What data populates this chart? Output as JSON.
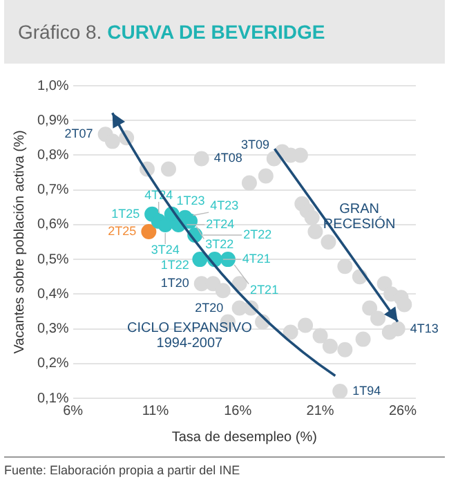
{
  "chart_data": {
    "type": "scatter",
    "title": "Gráfico 8.",
    "subtitle": "CURVA DE BEVERIDGE",
    "xlabel": "Tasa de desempleo (%)",
    "ylabel": "Vacantes sobre población activa (%)",
    "xlim": [
      6,
      26.8
    ],
    "ylim": [
      0.1,
      1.0
    ],
    "xticks": [
      {
        "value": 6,
        "label": "6%"
      },
      {
        "value": 11,
        "label": "11%"
      },
      {
        "value": 16,
        "label": "16%"
      },
      {
        "value": 21,
        "label": "21%"
      },
      {
        "value": 26,
        "label": "26%"
      }
    ],
    "yticks": [
      {
        "value": 0.1,
        "label": "0,1%"
      },
      {
        "value": 0.2,
        "label": "0,2%"
      },
      {
        "value": 0.3,
        "label": "0,3%"
      },
      {
        "value": 0.4,
        "label": "0,4%"
      },
      {
        "value": 0.5,
        "label": "0,5%"
      },
      {
        "value": 0.6,
        "label": "0,6%"
      },
      {
        "value": 0.7,
        "label": "0,7%"
      },
      {
        "value": 0.8,
        "label": "0,8%"
      },
      {
        "value": 0.9,
        "label": "0,9%"
      },
      {
        "value": 1.0,
        "label": "1,0%"
      }
    ],
    "grid": "y",
    "marker": "circle",
    "series": [
      {
        "color": "#d9d9d9",
        "x": [
          7.97,
          8.4,
          9.25,
          10.5,
          11.8,
          13.8,
          18.2,
          18.7,
          19.2,
          19.8,
          16.7,
          17.7,
          19.9,
          20.2,
          20.5,
          20.7,
          21.5,
          22.5,
          23.4,
          24.9,
          25.3,
          25.9,
          26.1,
          25.7,
          25.2,
          24.5,
          24.0,
          23.6,
          22.5,
          21.6,
          21.0,
          20.1,
          19.2,
          17.5,
          16.8,
          16.1,
          22.2,
          13.8,
          14.5,
          15.1,
          16.1,
          15.4
        ],
        "values": [
          0.86,
          0.84,
          0.85,
          0.76,
          0.76,
          0.79,
          0.79,
          0.81,
          0.8,
          0.8,
          0.72,
          0.74,
          0.66,
          0.64,
          0.62,
          0.58,
          0.55,
          0.48,
          0.45,
          0.43,
          0.4,
          0.39,
          0.37,
          0.3,
          0.29,
          0.33,
          0.36,
          0.27,
          0.24,
          0.25,
          0.28,
          0.31,
          0.29,
          0.32,
          0.36,
          0.36,
          0.12,
          0.43,
          0.43,
          0.41,
          0.43,
          0.32
        ],
        "value_labels": [
          "2T07",
          null,
          null,
          null,
          null,
          "4T08",
          "3T09",
          null,
          null,
          null,
          null,
          null,
          null,
          null,
          null,
          null,
          null,
          null,
          null,
          null,
          null,
          null,
          null,
          "4T13",
          null,
          null,
          null,
          null,
          null,
          null,
          null,
          null,
          null,
          null,
          null,
          null,
          "1T94",
          "1T20",
          null,
          null,
          null,
          "2T20"
        ]
      },
      {
        "color": "#33c6c6",
        "x": [
          10.8,
          11.2,
          11.6,
          12.0,
          12.4,
          12.8,
          13.1,
          13.4,
          13.7,
          14.6,
          15.4
        ],
        "values": [
          0.63,
          0.61,
          0.6,
          0.63,
          0.6,
          0.62,
          0.61,
          0.57,
          0.5,
          0.5,
          0.5
        ],
        "value_labels": [
          "1T25",
          "4T24",
          "3T24",
          "1T23",
          "2T24",
          "4T23",
          "3T22",
          "2T22",
          "1T22",
          "4T21",
          "2T21"
        ]
      },
      {
        "color": "#f28c38",
        "x": [
          10.6
        ],
        "values": [
          0.58
        ],
        "value_labels": [
          "2T25"
        ]
      }
    ],
    "annotations": [
      "GRAN\nRECESIÓN",
      "CICLO EXPANSIVO\n1994-2007",
      "Fuente: Elaboración propia a partir del INE"
    ]
  }
}
